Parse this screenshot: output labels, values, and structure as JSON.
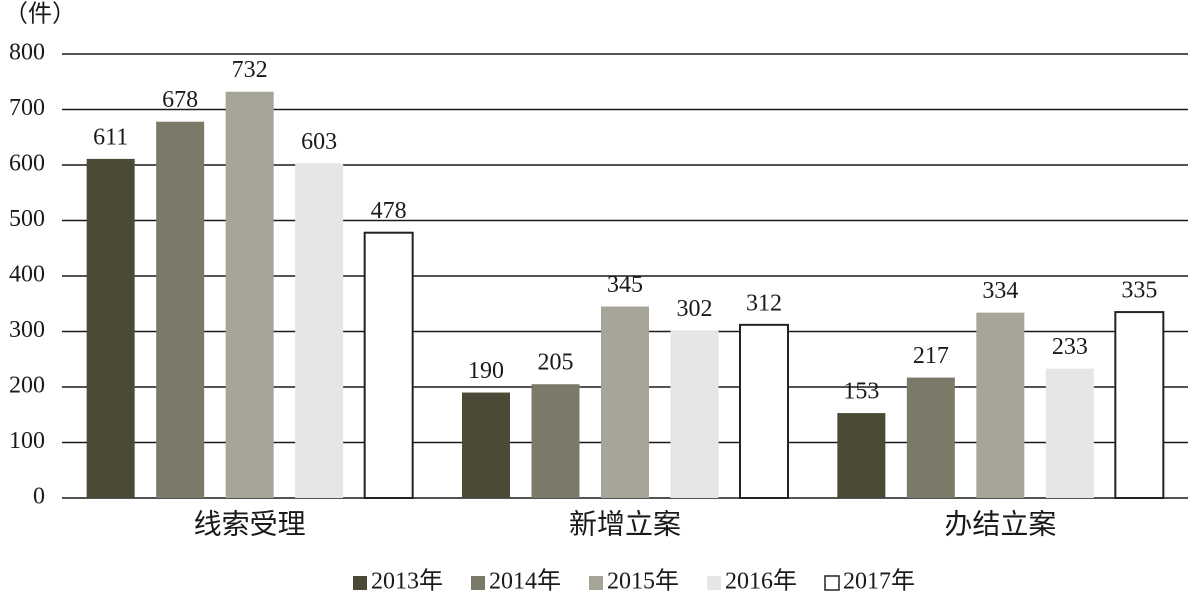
{
  "chart_data": {
    "type": "bar",
    "y_label": "（件）",
    "categories": [
      "线索受理",
      "新增立案",
      "办结立案"
    ],
    "series": [
      {
        "name": "2013年",
        "color": "#4b4a36",
        "values": [
          611,
          190,
          153
        ]
      },
      {
        "name": "2014年",
        "color": "#7b7a68",
        "values": [
          678,
          205,
          217
        ]
      },
      {
        "name": "2015年",
        "color": "#a6a598",
        "values": [
          732,
          345,
          334
        ]
      },
      {
        "name": "2016年",
        "color": "#e6e6e6",
        "values": [
          603,
          302,
          233
        ]
      },
      {
        "name": "2017年",
        "color": "#ffffff",
        "edgecolor": "#222222",
        "values": [
          478,
          312,
          335
        ]
      }
    ],
    "ylim": [
      0,
      800
    ],
    "yticks": [
      0,
      100,
      200,
      300,
      400,
      500,
      600,
      700,
      800
    ],
    "grid": true,
    "legend": "bottom"
  }
}
